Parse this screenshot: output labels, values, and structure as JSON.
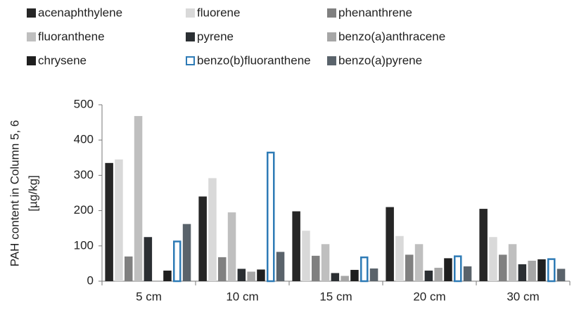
{
  "chart_data": {
    "type": "bar",
    "ylabel": [
      "PAH content in Column 5, 6",
      "[µg/kg]"
    ],
    "categories": [
      "5 cm",
      "10 cm",
      "15 cm",
      "20 cm",
      "30 cm"
    ],
    "series": [
      {
        "name": "acenaphthylene",
        "color": "#262626",
        "values": [
          335,
          240,
          198,
          210,
          205
        ]
      },
      {
        "name": "fluorene",
        "color": "#d9d9d9",
        "values": [
          345,
          292,
          143,
          128,
          125
        ]
      },
      {
        "name": "phenanthrene",
        "color": "#808080",
        "values": [
          70,
          68,
          72,
          75,
          75
        ]
      },
      {
        "name": "fluoranthene",
        "color": "#bfbfbf",
        "values": [
          468,
          195,
          105,
          105,
          105
        ]
      },
      {
        "name": "pyrene",
        "color": "#2b2f33",
        "values": [
          125,
          35,
          23,
          30,
          48
        ]
      },
      {
        "name": "benzo(a)anthracene",
        "color": "#a6a6a6",
        "values": [
          0,
          27,
          15,
          38,
          58
        ]
      },
      {
        "name": "chrysene",
        "color": "#1f1f1f",
        "values": [
          30,
          33,
          32,
          65,
          62
        ]
      },
      {
        "name": "benzo(b)fluoranthene",
        "color": "#ffffff",
        "border": "#2e7bb6",
        "values": [
          115,
          367,
          70,
          73,
          65
        ]
      },
      {
        "name": "benzo(a)pyrene",
        "color": "#5a636b",
        "values": [
          162,
          83,
          36,
          42,
          35
        ]
      }
    ],
    "ylim": [
      0,
      500
    ],
    "yticks": [
      0,
      100,
      200,
      300,
      400,
      500
    ],
    "grid": false
  }
}
